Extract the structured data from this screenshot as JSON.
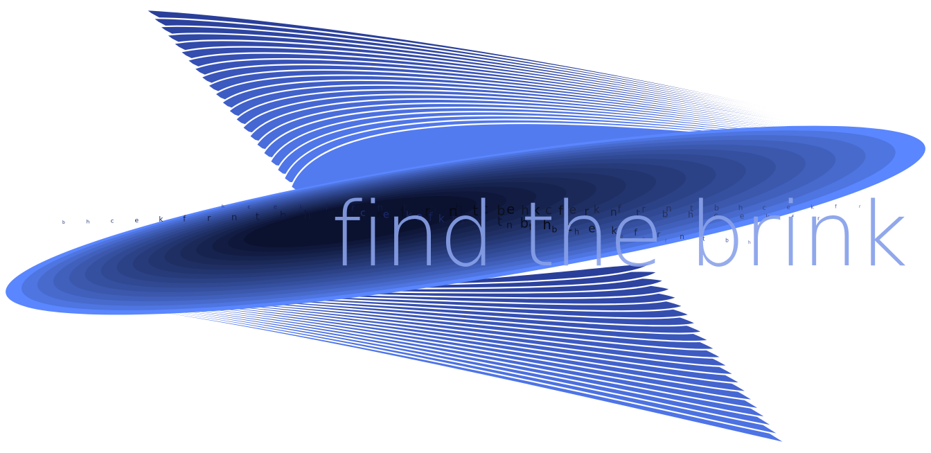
{
  "headline": {
    "text": "find the brink",
    "part_a": "find the b",
    "part_b": "rink",
    "color_main": "#8aa2ea",
    "color_gray": "#9a9a9a"
  },
  "trail_letters": [
    "b",
    "h",
    "c",
    "e",
    "k",
    "f",
    "r",
    "n",
    "t"
  ],
  "palette": {
    "dark_navy": "#0b1230",
    "deep_blue": "#2a3f9a",
    "mid_blue": "#3f5fd6",
    "bright_blue": "#5a86ff",
    "line_white": "#ffffff"
  },
  "artwork": {
    "ribbon_count": 22,
    "description_icon": "wave-ribbon-art"
  }
}
